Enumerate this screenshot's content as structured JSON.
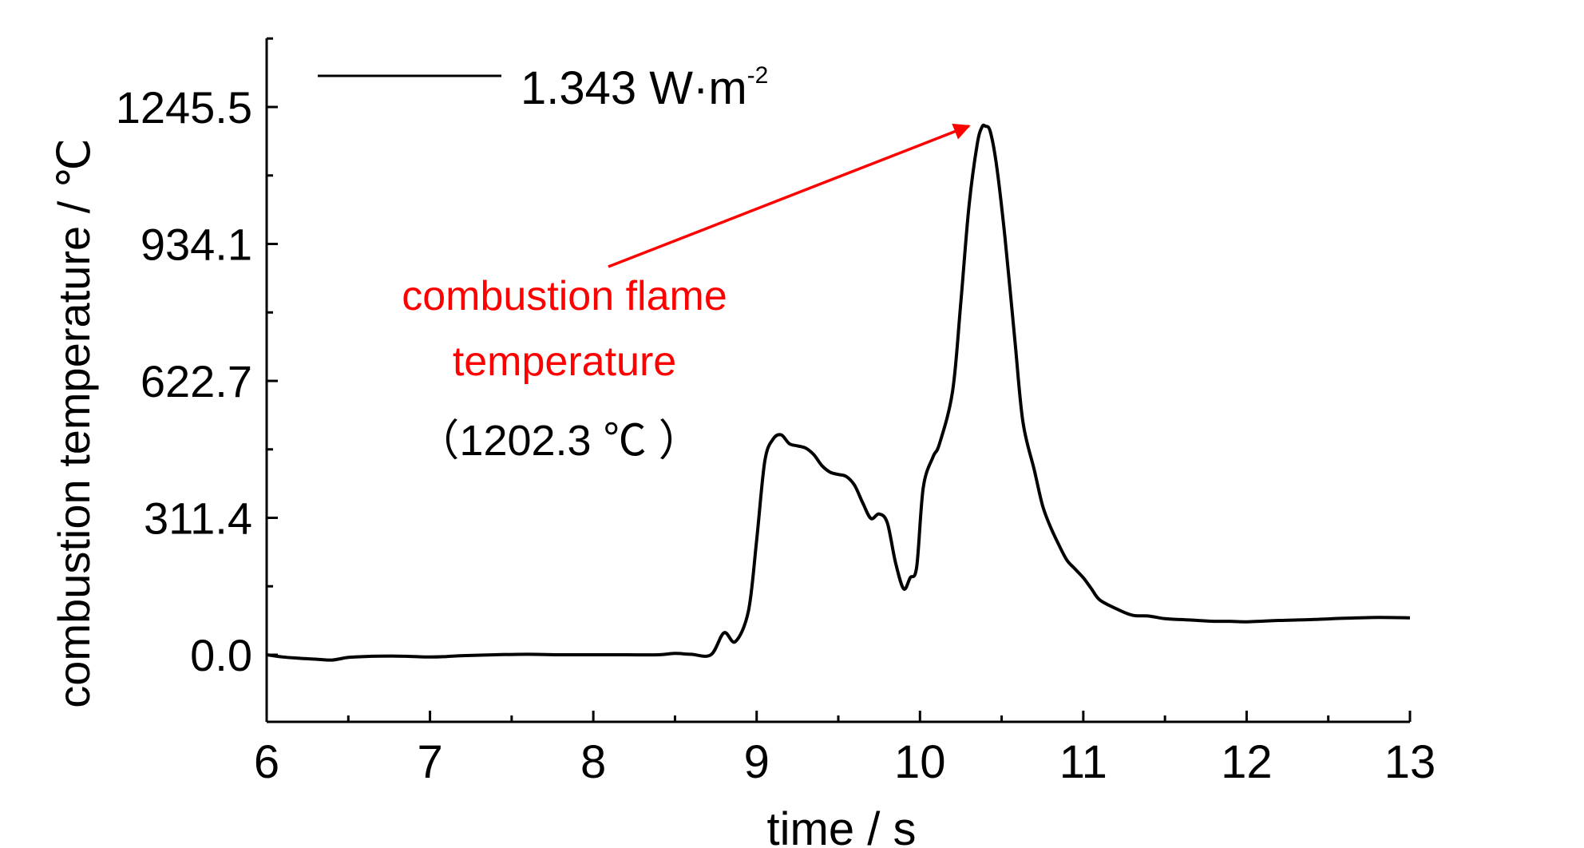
{
  "chart_data": {
    "type": "line",
    "title": "",
    "xlabel": "time / s",
    "ylabel": "combustion temperature / ℃",
    "xlim": [
      6,
      13
    ],
    "ylim": [
      -150,
      1400
    ],
    "xticks": [
      6,
      7,
      8,
      9,
      10,
      11,
      12,
      13
    ],
    "xtick_labels": [
      "6",
      "7",
      "8",
      "9",
      "10",
      "11",
      "12",
      "13"
    ],
    "yticks": [
      0.0,
      311.4,
      622.7,
      934.1,
      1245.5
    ],
    "ytick_labels": [
      "0.0",
      "311.4",
      "622.7",
      "934.1",
      "1245.5"
    ],
    "grid": false,
    "legend_position": "top-left",
    "series": [
      {
        "name": "1.343 W·m-2",
        "color": "#000000",
        "x": [
          6.0,
          6.1,
          6.2,
          6.3,
          6.4,
          6.5,
          6.6,
          6.8,
          7.0,
          7.1,
          7.2,
          7.4,
          7.6,
          7.8,
          8.0,
          8.2,
          8.4,
          8.5,
          8.6,
          8.72,
          8.8,
          8.87,
          8.95,
          9.0,
          9.05,
          9.1,
          9.15,
          9.2,
          9.25,
          9.3,
          9.35,
          9.4,
          9.45,
          9.5,
          9.55,
          9.6,
          9.65,
          9.7,
          9.75,
          9.8,
          9.85,
          9.9,
          9.94,
          9.98,
          10.02,
          10.08,
          10.12,
          10.2,
          10.25,
          10.3,
          10.35,
          10.38,
          10.4,
          10.43,
          10.47,
          10.52,
          10.58,
          10.63,
          10.7,
          10.75,
          10.8,
          10.85,
          10.9,
          10.95,
          11.0,
          11.05,
          11.1,
          11.2,
          11.3,
          11.4,
          11.5,
          11.6,
          11.7,
          11.8,
          11.9,
          12.0,
          12.2,
          12.4,
          12.6,
          12.8,
          13.0
        ],
        "y": [
          0,
          -5,
          -8,
          -10,
          -12,
          -6,
          -4,
          -3,
          -5,
          -4,
          -2,
          0,
          1,
          0,
          0,
          0,
          0,
          3,
          1,
          0,
          50,
          30,
          100,
          260,
          440,
          490,
          500,
          480,
          475,
          470,
          455,
          430,
          415,
          410,
          405,
          385,
          345,
          310,
          320,
          300,
          210,
          150,
          175,
          200,
          380,
          450,
          480,
          600,
          800,
          1020,
          1160,
          1200,
          1202,
          1190,
          1110,
          950,
          720,
          530,
          420,
          340,
          290,
          250,
          215,
          195,
          175,
          150,
          125,
          105,
          90,
          88,
          82,
          80,
          78,
          76,
          76,
          75,
          78,
          80,
          83,
          85,
          84
        ]
      }
    ],
    "annotations": [
      {
        "lines": [
          "combustion flame",
          "temperature"
        ],
        "color": "#ff0000",
        "arrow_to": {
          "x": 10.3,
          "y": 1202.3
        }
      },
      {
        "text": "（1202.3 ℃ ）",
        "color": "#000000"
      }
    ]
  },
  "legend": {
    "label_main": "1.343 W·m",
    "label_sup": "-2"
  }
}
